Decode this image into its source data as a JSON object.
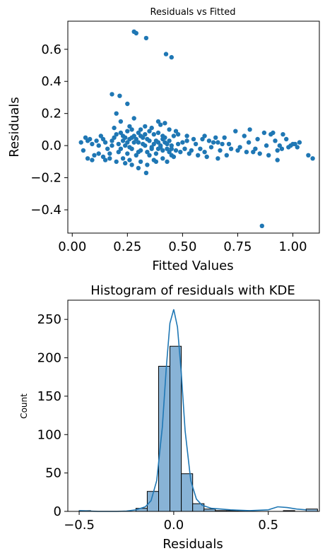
{
  "colors": {
    "point": "#1f77b4",
    "bar_fill": "#88b3d6",
    "bar_edge": "#000000",
    "kde": "#1f77b4"
  },
  "chart_data": [
    {
      "type": "scatter",
      "title": "Residuals vs Fitted",
      "xlabel": "Fitted Values",
      "ylabel": "Residuals",
      "xlim": [
        -0.02,
        1.12
      ],
      "ylim": [
        -0.545,
        0.775
      ],
      "xticks": [
        0.0,
        0.25,
        0.5,
        0.75,
        1.0
      ],
      "xtick_labels": [
        "0.00",
        "0.25",
        "0.50",
        "0.75",
        "1.00"
      ],
      "yticks": [
        -0.4,
        -0.2,
        0.0,
        0.2,
        0.4,
        0.6
      ],
      "ytick_labels": [
        "−0.4",
        "−0.2",
        "0.0",
        "0.2",
        "0.4",
        "0.6"
      ],
      "grid": false,
      "points": [
        [
          0.28,
          0.71
        ],
        [
          0.29,
          0.7
        ],
        [
          0.335,
          0.67
        ],
        [
          0.425,
          0.57
        ],
        [
          0.45,
          0.55
        ],
        [
          0.18,
          0.32
        ],
        [
          0.215,
          0.31
        ],
        [
          0.25,
          0.26
        ],
        [
          0.2,
          0.2
        ],
        [
          0.39,
          0.15
        ],
        [
          0.42,
          0.14
        ],
        [
          0.4,
          0.13
        ],
        [
          0.805,
          0.1
        ],
        [
          0.74,
          0.09
        ],
        [
          0.91,
          0.08
        ],
        [
          0.955,
          0.07
        ],
        [
          0.87,
          0.08
        ],
        [
          0.6,
          0.06
        ],
        [
          0.69,
          0.05
        ],
        [
          0.26,
          0.12
        ],
        [
          0.31,
          0.1
        ],
        [
          0.35,
          0.09
        ],
        [
          0.22,
          0.08
        ],
        [
          0.55,
          0.04
        ],
        [
          0.62,
          0.03
        ],
        [
          0.5,
          0.02
        ],
        [
          1.03,
          0.02
        ],
        [
          1.01,
          0.01
        ],
        [
          0.99,
          0.0
        ],
        [
          1.07,
          -0.06
        ],
        [
          1.09,
          -0.08
        ],
        [
          0.93,
          -0.09
        ],
        [
          0.93,
          -0.03
        ],
        [
          0.85,
          -0.05
        ],
        [
          0.79,
          -0.04
        ],
        [
          0.7,
          -0.06
        ],
        [
          0.66,
          -0.08
        ],
        [
          0.61,
          -0.07
        ],
        [
          0.57,
          -0.06
        ],
        [
          0.53,
          -0.05
        ],
        [
          0.49,
          -0.04
        ],
        [
          0.45,
          -0.06
        ],
        [
          0.41,
          -0.08
        ],
        [
          0.38,
          -0.1
        ],
        [
          0.335,
          -0.17
        ],
        [
          0.3,
          -0.14
        ],
        [
          0.27,
          -0.12
        ],
        [
          0.24,
          -0.11
        ],
        [
          0.2,
          -0.1
        ],
        [
          0.17,
          -0.08
        ],
        [
          0.14,
          -0.07
        ],
        [
          0.12,
          -0.05
        ],
        [
          0.1,
          -0.06
        ],
        [
          0.09,
          -0.09
        ],
        [
          0.07,
          -0.08
        ],
        [
          0.05,
          -0.03
        ],
        [
          0.04,
          0.02
        ],
        [
          0.06,
          0.05
        ],
        [
          0.08,
          0.04
        ],
        [
          0.11,
          0.03
        ],
        [
          0.13,
          0.06
        ],
        [
          0.15,
          0.02
        ],
        [
          0.16,
          -0.02
        ],
        [
          0.18,
          0.0
        ],
        [
          0.19,
          0.05
        ],
        [
          0.21,
          -0.04
        ],
        [
          0.23,
          0.03
        ],
        [
          0.24,
          0.0
        ],
        [
          0.25,
          -0.05
        ],
        [
          0.26,
          0.04
        ],
        [
          0.27,
          -0.02
        ],
        [
          0.28,
          0.06
        ],
        [
          0.29,
          -0.06
        ],
        [
          0.3,
          0.02
        ],
        [
          0.31,
          -0.03
        ],
        [
          0.32,
          0.05
        ],
        [
          0.33,
          0.0
        ],
        [
          0.34,
          -0.04
        ],
        [
          0.35,
          0.03
        ],
        [
          0.36,
          -0.01
        ],
        [
          0.37,
          0.07
        ],
        [
          0.38,
          -0.05
        ],
        [
          0.39,
          0.02
        ],
        [
          0.4,
          0.0
        ],
        [
          0.41,
          -0.03
        ],
        [
          0.42,
          0.05
        ],
        [
          0.43,
          -0.02
        ],
        [
          0.44,
          0.03
        ],
        [
          0.45,
          0.0
        ],
        [
          0.46,
          0.06
        ],
        [
          0.47,
          -0.03
        ],
        [
          0.48,
          0.01
        ],
        [
          0.51,
          -0.02
        ],
        [
          0.52,
          0.03
        ],
        [
          0.56,
          0.01
        ],
        [
          0.58,
          -0.02
        ],
        [
          0.59,
          0.04
        ],
        [
          0.63,
          -0.01
        ],
        [
          0.64,
          0.02
        ],
        [
          0.65,
          0.05
        ],
        [
          0.67,
          -0.03
        ],
        [
          0.68,
          0.01
        ],
        [
          0.72,
          -0.02
        ],
        [
          0.76,
          -0.01
        ],
        [
          0.82,
          -0.04
        ],
        [
          0.83,
          -0.02
        ],
        [
          0.86,
          -0.5
        ],
        [
          0.88,
          0.0
        ],
        [
          0.89,
          -0.06
        ],
        [
          0.92,
          0.03
        ],
        [
          0.95,
          -0.02
        ],
        [
          0.97,
          0.04
        ],
        [
          0.98,
          -0.01
        ],
        [
          0.22,
          0.15
        ],
        [
          0.28,
          0.17
        ],
        [
          0.33,
          0.12
        ],
        [
          0.36,
          0.11
        ],
        [
          0.44,
          0.1
        ],
        [
          0.47,
          0.09
        ],
        [
          0.19,
          0.11
        ],
        [
          0.23,
          -0.08
        ],
        [
          0.26,
          -0.09
        ],
        [
          0.31,
          -0.1
        ],
        [
          0.34,
          -0.12
        ],
        [
          0.37,
          -0.09
        ],
        [
          0.43,
          -0.1
        ],
        [
          0.46,
          -0.07
        ],
        [
          0.15,
          -0.09
        ],
        [
          0.12,
          0.0
        ],
        [
          0.09,
          0.01
        ],
        [
          0.07,
          0.03
        ],
        [
          0.3,
          0.08
        ],
        [
          0.33,
          0.07
        ],
        [
          0.25,
          0.09
        ],
        [
          0.2,
          0.07
        ],
        [
          0.27,
          0.1
        ],
        [
          0.39,
          0.08
        ],
        [
          0.41,
          0.06
        ],
        [
          0.48,
          0.07
        ],
        [
          0.52,
          0.06
        ],
        [
          0.54,
          -0.03
        ],
        [
          0.6,
          -0.04
        ],
        [
          0.66,
          0.02
        ],
        [
          0.71,
          0.01
        ],
        [
          0.75,
          -0.03
        ],
        [
          0.78,
          0.06
        ],
        [
          0.8,
          0.02
        ],
        [
          0.84,
          0.04
        ],
        [
          0.9,
          0.07
        ],
        [
          0.94,
          0.0
        ],
        [
          1.0,
          0.01
        ],
        [
          1.02,
          -0.01
        ],
        [
          0.24,
          0.05
        ],
        [
          0.26,
          -0.01
        ],
        [
          0.28,
          0.02
        ],
        [
          0.3,
          -0.04
        ],
        [
          0.32,
          0.01
        ],
        [
          0.34,
          0.04
        ],
        [
          0.36,
          -0.02
        ],
        [
          0.38,
          0.03
        ],
        [
          0.4,
          -0.01
        ],
        [
          0.42,
          0.02
        ],
        [
          0.44,
          -0.04
        ],
        [
          0.29,
          0.04
        ],
        [
          0.31,
          0.06
        ],
        [
          0.35,
          -0.06
        ],
        [
          0.37,
          0.01
        ],
        [
          0.39,
          -0.02
        ],
        [
          0.41,
          0.04
        ],
        [
          0.43,
          0.01
        ],
        [
          0.45,
          -0.02
        ],
        [
          0.18,
          0.03
        ],
        [
          0.17,
          -0.05
        ],
        [
          0.14,
          0.04
        ],
        [
          0.21,
          0.01
        ],
        [
          0.22,
          -0.02
        ],
        [
          0.23,
          0.06
        ],
        [
          0.25,
          0.02
        ],
        [
          0.27,
          0.05
        ]
      ]
    },
    {
      "type": "histogram",
      "title": "Histogram of residuals with KDE",
      "xlabel": "Residuals",
      "ylabel": "Count",
      "xlim": [
        -0.56,
        0.77
      ],
      "ylim": [
        0,
        275
      ],
      "xticks": [
        -0.5,
        0.0,
        0.5
      ],
      "xtick_labels": [
        "−0.5",
        "0.0",
        "0.5"
      ],
      "yticks": [
        0,
        50,
        100,
        150,
        200,
        250
      ],
      "ytick_labels": [
        "0",
        "50",
        "100",
        "150",
        "200",
        "250"
      ],
      "bin_start": -0.5,
      "bin_width": 0.06,
      "counts": [
        1,
        0,
        0,
        0,
        0,
        4,
        26,
        189,
        215,
        49,
        10,
        3,
        1,
        1,
        1,
        0,
        0,
        0,
        1,
        0,
        3
      ],
      "kde": {
        "x": [
          -0.5,
          -0.4,
          -0.3,
          -0.25,
          -0.2,
          -0.15,
          -0.12,
          -0.09,
          -0.06,
          -0.04,
          -0.02,
          0.0,
          0.02,
          0.04,
          0.06,
          0.09,
          0.12,
          0.15,
          0.2,
          0.25,
          0.3,
          0.4,
          0.5,
          0.55,
          0.6,
          0.65,
          0.7
        ],
        "y": [
          1,
          0,
          0,
          0.5,
          2,
          6,
          14,
          40,
          110,
          185,
          245,
          263,
          240,
          180,
          105,
          40,
          16,
          8,
          4,
          3,
          2,
          1,
          2,
          6,
          5,
          3,
          2
        ]
      },
      "grid": false
    }
  ]
}
